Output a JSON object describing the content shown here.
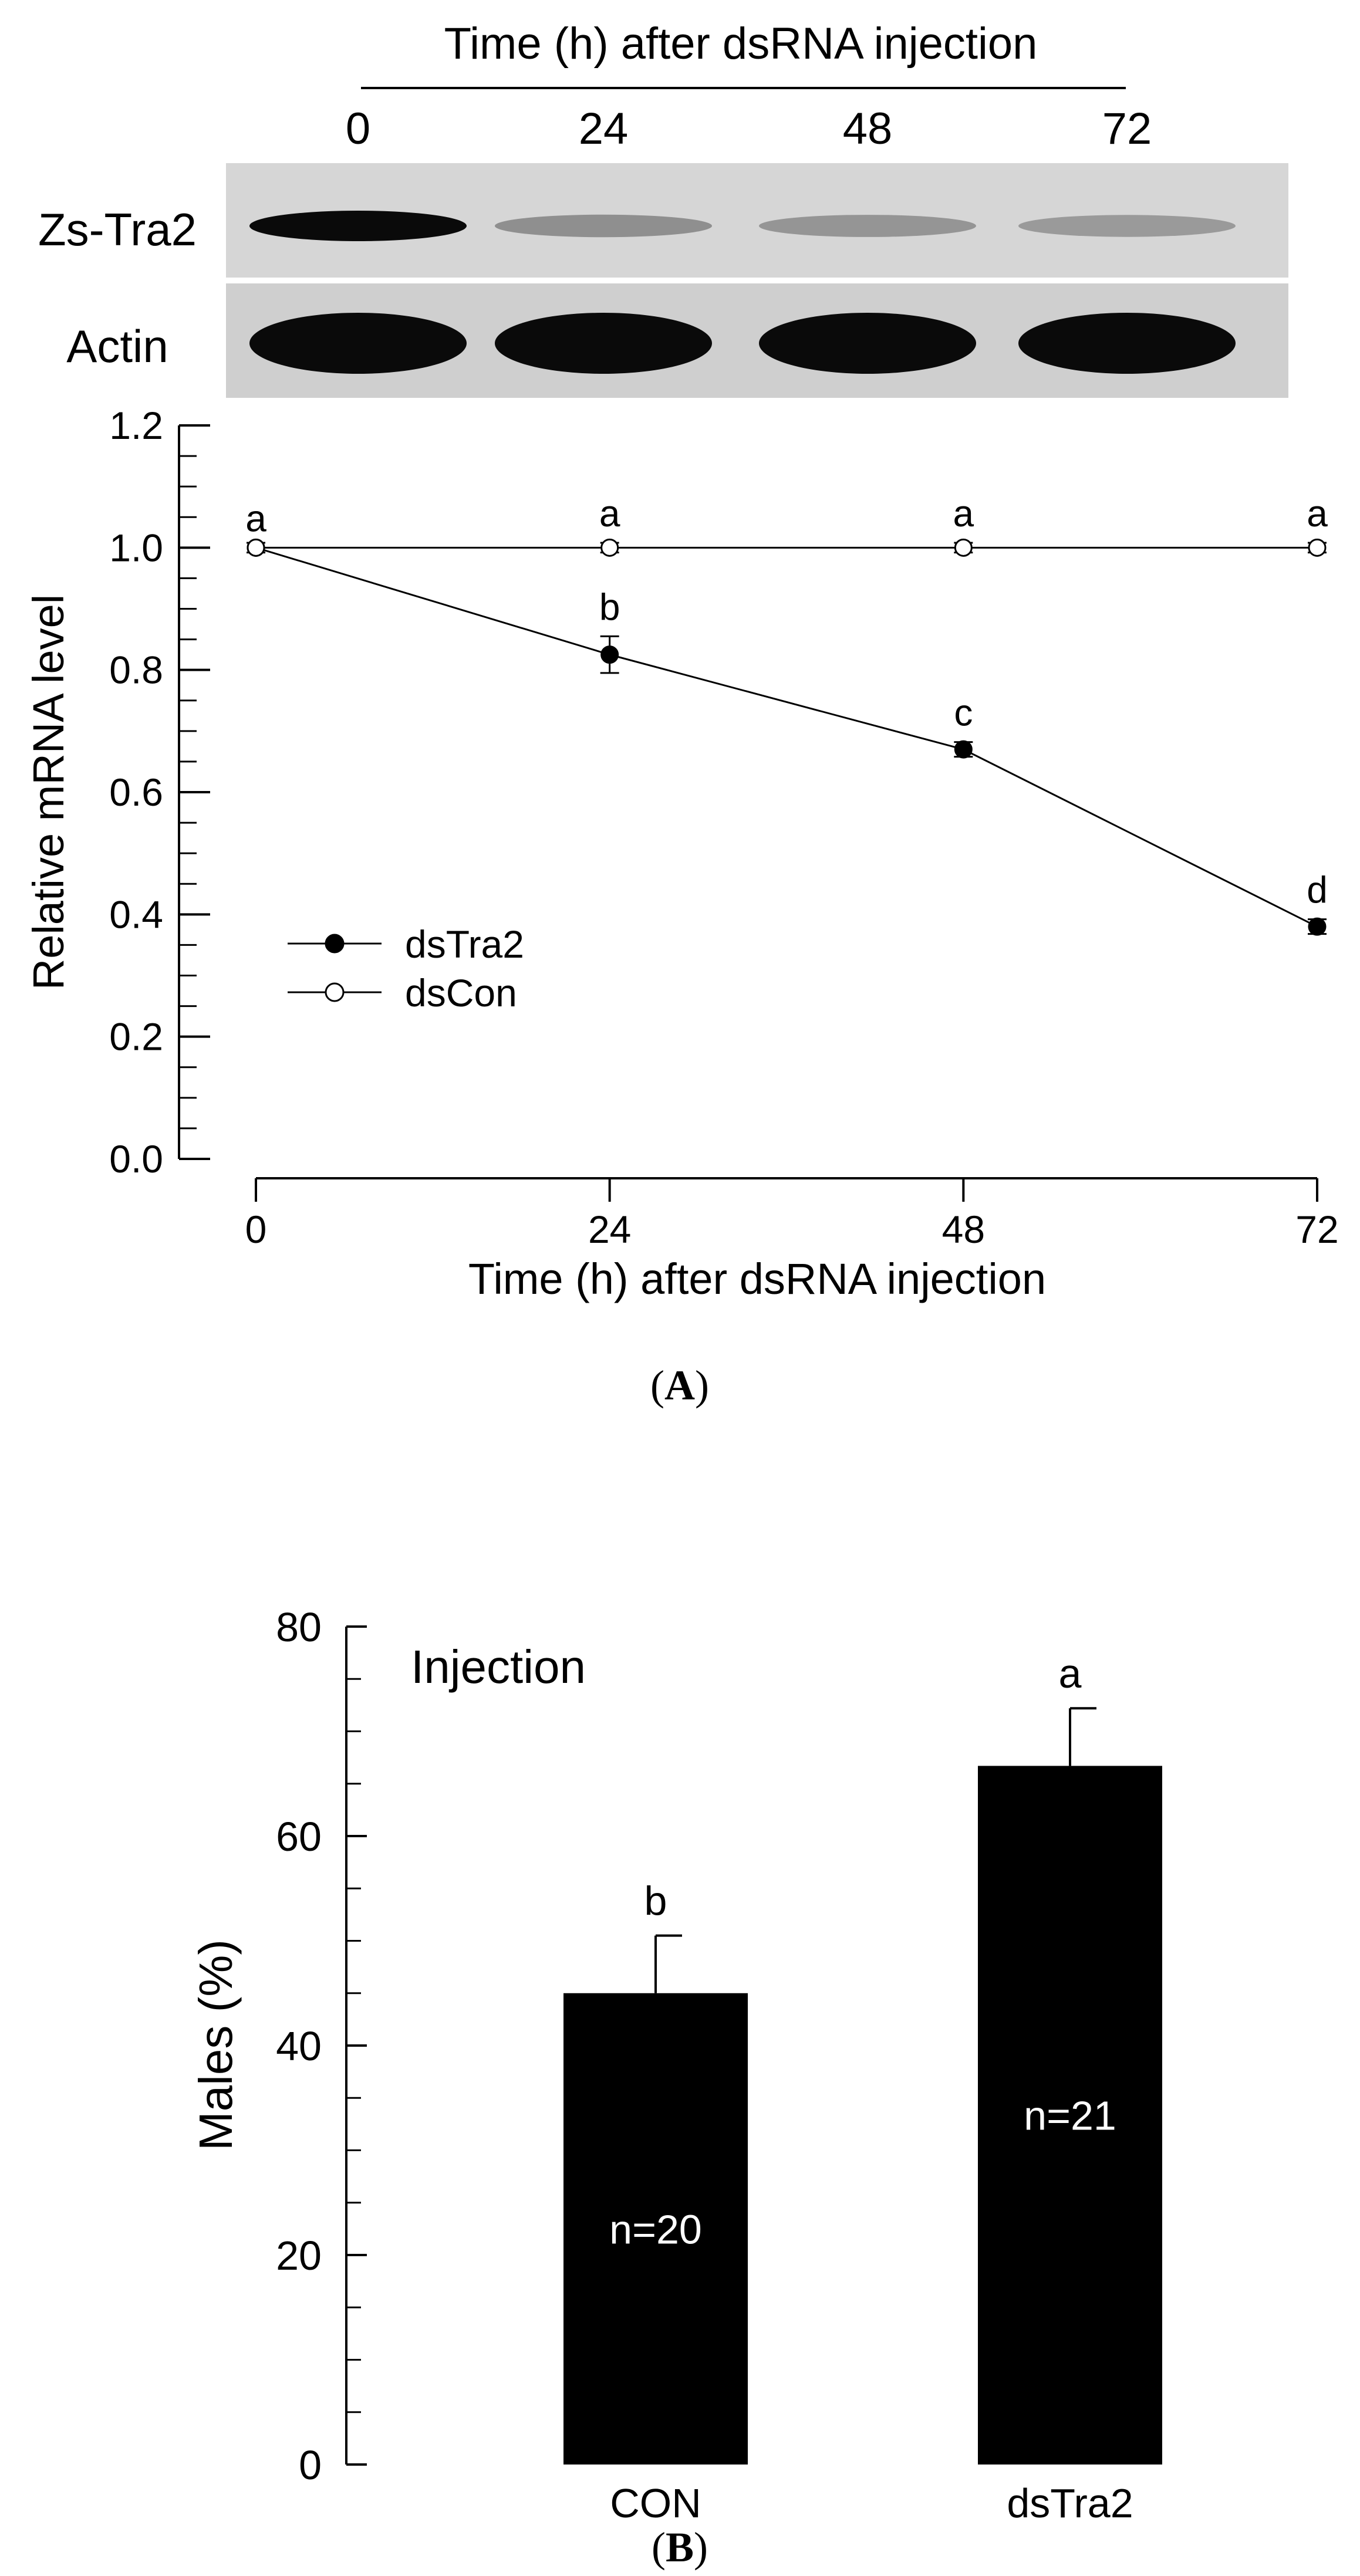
{
  "panel_a_label": "A",
  "panel_b_label": "B",
  "blot": {
    "header": "Time (h) after dsRNA injection",
    "lanes": [
      "0",
      "24",
      "48",
      "72"
    ],
    "rows": [
      {
        "label": "Zs-Tra2",
        "intensity": [
          1.0,
          0.35,
          0.32,
          0.3
        ]
      },
      {
        "label": "Actin",
        "intensity": [
          1.0,
          1.0,
          1.0,
          1.0
        ]
      }
    ]
  },
  "chart_data": [
    {
      "type": "line",
      "title": "",
      "xlabel": "Time (h) after dsRNA injection",
      "ylabel": "Relative mRNA level",
      "x": [
        0,
        24,
        48,
        72
      ],
      "xticks": [
        "0",
        "24",
        "48",
        "72"
      ],
      "xlim": [
        0,
        72
      ],
      "ylim": [
        0.0,
        1.2
      ],
      "yticks": [
        "0.0",
        "0.2",
        "0.4",
        "0.6",
        "0.8",
        "1.0",
        "1.2"
      ],
      "grid": false,
      "legend_position": "lower-left",
      "series": [
        {
          "name": "dsTra2",
          "marker": "filled-circle",
          "values": [
            1.0,
            0.825,
            0.67,
            0.38
          ],
          "errors": [
            0.0,
            0.03,
            0.012,
            0.012
          ],
          "labels": [
            "a",
            "b",
            "c",
            "d"
          ]
        },
        {
          "name": "dsCon",
          "marker": "open-circle",
          "values": [
            1.0,
            1.0,
            1.0,
            1.0
          ],
          "errors": [
            0.008,
            0.008,
            0.008,
            0.008
          ],
          "labels": [
            "",
            "a",
            "a",
            "a"
          ]
        }
      ]
    },
    {
      "type": "bar",
      "title": "Injection",
      "xlabel": "",
      "ylabel": "Males (%)",
      "categories": [
        "CON",
        "dsTra2"
      ],
      "values": [
        45,
        66.7
      ],
      "errors": [
        5.5,
        5.5
      ],
      "letters": [
        "b",
        "a"
      ],
      "sample_sizes": [
        "n=20",
        "n=21"
      ],
      "ylim": [
        0,
        80
      ],
      "yticks": [
        "0",
        "20",
        "40",
        "60",
        "80"
      ],
      "bar_color": "#000000"
    }
  ]
}
